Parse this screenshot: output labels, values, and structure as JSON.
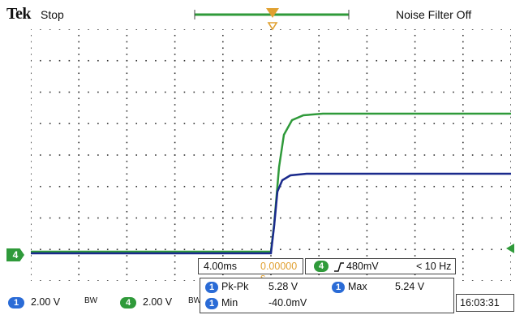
{
  "header": {
    "brand": "Tek",
    "run_state": "Stop",
    "noise_filter": "Noise Filter Off"
  },
  "trigger_marker_label": "4",
  "acquisition": {
    "time_per_div": "4.00ms",
    "trigger_position": "0.00000 s",
    "trigger_channel": "4",
    "trigger_level": "480mV",
    "trigger_freq": "< 10 Hz"
  },
  "channels": [
    {
      "number": "1",
      "scale": "2.00 V",
      "bw": "BW",
      "color": "#2a6bd6"
    },
    {
      "number": "4",
      "scale": "2.00 V",
      "bw": "BW",
      "color": "#2f9a3a"
    }
  ],
  "measurements": [
    {
      "channel": "1",
      "name": "Pk-Pk",
      "value": "5.28 V"
    },
    {
      "channel": "1",
      "name": "Max",
      "value": "5.24 V"
    },
    {
      "channel": "1",
      "name": "Min",
      "value": "-40.0mV"
    }
  ],
  "clock": "16:03:31",
  "colors": {
    "ch1_trace": "#1a2a8c",
    "ch4_trace": "#2f9a3a",
    "trigger": "#e0a030",
    "grid_dots": "#333333"
  }
}
